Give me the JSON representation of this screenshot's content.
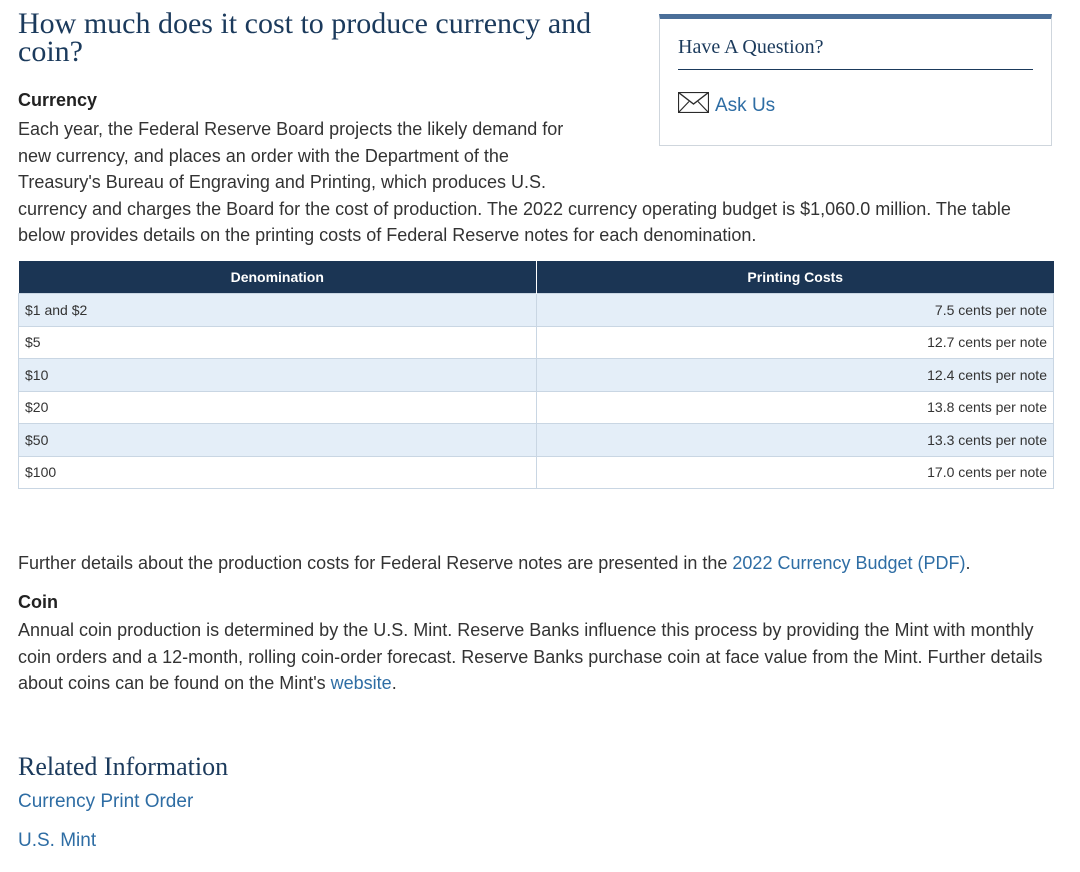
{
  "title": "How much does it cost to produce currency and coin?",
  "sidebar": {
    "title": "Have A Question?",
    "ask_label": "Ask Us",
    "ask_icon": "envelope-icon"
  },
  "currency": {
    "heading": "Currency",
    "text_a": "Each year, the Federal Reserve Board projects the likely demand for",
    "text_b": "new currency, and places an order with the Department of the",
    "text_c": "Treasury's Bureau of Engraving and Printing, which produces U.S.",
    "text_d": "currency and charges the Board for the cost of production. The 2022 currency operating budget is $1,060.0 million. The table below provides details on the printing costs of Federal Reserve notes for each denomination."
  },
  "table": {
    "headers": [
      "Denomination",
      "Printing Costs"
    ],
    "rows": [
      {
        "denomination": "$1 and $2",
        "cost": "7.5 cents per note"
      },
      {
        "denomination": "$5",
        "cost": "12.7 cents per note"
      },
      {
        "denomination": "$10",
        "cost": "12.4 cents per note"
      },
      {
        "denomination": "$20",
        "cost": "13.8 cents per note"
      },
      {
        "denomination": "$50",
        "cost": "13.3 cents per note"
      },
      {
        "denomination": "$100",
        "cost": "17.0 cents per note"
      }
    ]
  },
  "further": {
    "prefix": "Further details about the production costs for Federal Reserve notes are presented in the ",
    "link": "2022 Currency Budget (PDF)",
    "suffix": "."
  },
  "coin": {
    "heading": "Coin",
    "text": "Annual coin production is determined by the U.S. Mint. Reserve Banks influence this process by providing the Mint with monthly coin orders and a 12-month, rolling coin-order forecast. Reserve Banks purchase coin at face value from the Mint. Further details about coins can be found on the Mint's ",
    "link": "website",
    "suffix": "."
  },
  "related": {
    "title": "Related Information",
    "links": [
      "Currency Print Order",
      "U.S. Mint"
    ]
  },
  "colors": {
    "heading": "#1b3a5c",
    "table_header": "#1b3554",
    "link": "#2e6da4",
    "row_alt": "#e4eef8"
  }
}
